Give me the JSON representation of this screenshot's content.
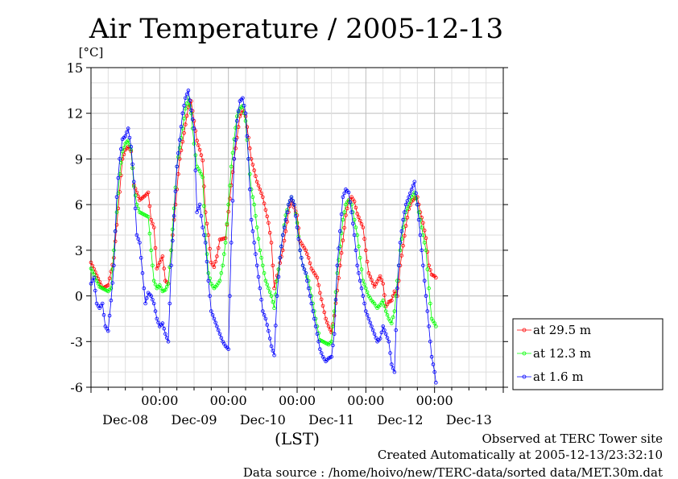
{
  "chart_data": {
    "type": "line",
    "title": "Air Temperature / 2005-12-13",
    "ylabel": "[°C]",
    "xlabel": "(LST)",
    "ylim": [
      -6,
      15
    ],
    "yticks": [
      "15",
      "12",
      "9",
      "6",
      "3",
      "0",
      "-3",
      "-6"
    ],
    "xlim_hours": [
      0,
      144
    ],
    "x_time_labels": [
      "00:00",
      "00:00",
      "00:00",
      "00:00",
      "00:00"
    ],
    "x_date_labels": [
      "Dec-08",
      "Dec-09",
      "Dec-10",
      "Dec-11",
      "Dec-12",
      "Dec-13"
    ],
    "grid": true,
    "legend_position": "right",
    "series": [
      {
        "name": "at 29.5 m",
        "color": "#ff0000",
        "points": [
          [
            0,
            2.2
          ],
          [
            4,
            0.5
          ],
          [
            6,
            0.7
          ],
          [
            8,
            2.5
          ],
          [
            11,
            9.0
          ],
          [
            12,
            9.6
          ],
          [
            13,
            9.8
          ],
          [
            14,
            9.5
          ],
          [
            15,
            7.3
          ],
          [
            17,
            6.3
          ],
          [
            19,
            6.6
          ],
          [
            20,
            6.8
          ],
          [
            21,
            5.0
          ],
          [
            22,
            4.5
          ],
          [
            23,
            1.8
          ],
          [
            25,
            2.6
          ],
          [
            26,
            1.0
          ],
          [
            27,
            0.8
          ],
          [
            28,
            3.0
          ],
          [
            31,
            9.0
          ],
          [
            34,
            12.4
          ],
          [
            35,
            12.8
          ],
          [
            36,
            11.5
          ],
          [
            37,
            10.2
          ],
          [
            38,
            9.6
          ],
          [
            39,
            8.9
          ],
          [
            40,
            5.5
          ],
          [
            41,
            4.0
          ],
          [
            42,
            2.2
          ],
          [
            43,
            1.9
          ],
          [
            44,
            2.6
          ],
          [
            45,
            3.7
          ],
          [
            47,
            3.8
          ],
          [
            50,
            9.0
          ],
          [
            52,
            11.8
          ],
          [
            53,
            12.2
          ],
          [
            54,
            11.8
          ],
          [
            56,
            9.0
          ],
          [
            58,
            7.5
          ],
          [
            60,
            6.5
          ],
          [
            62,
            4.8
          ],
          [
            63,
            3.5
          ],
          [
            64,
            0.5
          ],
          [
            67,
            3.0
          ],
          [
            69,
            5.5
          ],
          [
            70,
            6.3
          ],
          [
            72,
            5.3
          ],
          [
            73,
            3.6
          ],
          [
            75,
            3.0
          ],
          [
            76,
            2.5
          ],
          [
            77,
            1.8
          ],
          [
            79,
            1.2
          ],
          [
            80,
            0.2
          ],
          [
            82,
            -1.5
          ],
          [
            83,
            -2.0
          ],
          [
            84,
            -2.4
          ],
          [
            85,
            -1.3
          ],
          [
            87,
            2.0
          ],
          [
            89,
            5.3
          ],
          [
            90,
            6.2
          ],
          [
            91,
            6.5
          ],
          [
            92,
            6.2
          ],
          [
            93,
            5.4
          ],
          [
            95,
            4.5
          ],
          [
            97,
            1.5
          ],
          [
            99,
            0.6
          ],
          [
            101,
            1.3
          ],
          [
            102,
            0.8
          ],
          [
            103,
            -0.7
          ],
          [
            104,
            -0.4
          ],
          [
            105,
            -0.3
          ],
          [
            106,
            0.3
          ],
          [
            107,
            0.0
          ],
          [
            108,
            2.0
          ],
          [
            110,
            4.6
          ],
          [
            111,
            5.7
          ],
          [
            112,
            6.2
          ],
          [
            113,
            6.4
          ],
          [
            114,
            6.5
          ],
          [
            115,
            5.5
          ],
          [
            116,
            4.8
          ],
          [
            117,
            3.8
          ],
          [
            118,
            2.0
          ],
          [
            119,
            1.4
          ],
          [
            120,
            1.3
          ],
          [
            120.5,
            1.2
          ]
        ]
      },
      {
        "name": "at 12.3 m",
        "color": "#00ff00",
        "points": [
          [
            0,
            1.8
          ],
          [
            2,
            1.0
          ],
          [
            3,
            0.6
          ],
          [
            4,
            0.5
          ],
          [
            6,
            0.3
          ],
          [
            7,
            0.5
          ],
          [
            8,
            3.0
          ],
          [
            10,
            8.0
          ],
          [
            11,
            9.5
          ],
          [
            12,
            10.0
          ],
          [
            13,
            10.2
          ],
          [
            14,
            9.6
          ],
          [
            15,
            7.2
          ],
          [
            16,
            6.0
          ],
          [
            17,
            5.5
          ],
          [
            19,
            5.3
          ],
          [
            20,
            5.2
          ],
          [
            21,
            3.0
          ],
          [
            22,
            1.0
          ],
          [
            23,
            0.5
          ],
          [
            24,
            0.7
          ],
          [
            25,
            0.3
          ],
          [
            26,
            0.4
          ],
          [
            27,
            0.8
          ],
          [
            28,
            3.0
          ],
          [
            30,
            8.5
          ],
          [
            32,
            11.0
          ],
          [
            33,
            12.3
          ],
          [
            34,
            13.0
          ],
          [
            35,
            12.0
          ],
          [
            36,
            10.0
          ],
          [
            37,
            8.5
          ],
          [
            38,
            8.2
          ],
          [
            39,
            7.8
          ],
          [
            40,
            4.0
          ],
          [
            41,
            1.5
          ],
          [
            42,
            0.8
          ],
          [
            43,
            0.5
          ],
          [
            44,
            0.7
          ],
          [
            45,
            1.0
          ],
          [
            46,
            2.0
          ],
          [
            47,
            3.5
          ],
          [
            49,
            8.5
          ],
          [
            50,
            10.3
          ],
          [
            51,
            11.8
          ],
          [
            52,
            12.3
          ],
          [
            53,
            12.5
          ],
          [
            54,
            11.5
          ],
          [
            55,
            9.0
          ],
          [
            56,
            7.0
          ],
          [
            57,
            6.0
          ],
          [
            58,
            4.5
          ],
          [
            59,
            3.0
          ],
          [
            60,
            2.0
          ],
          [
            61,
            1.0
          ],
          [
            62,
            0.5
          ],
          [
            63,
            0.0
          ],
          [
            64,
            -0.8
          ],
          [
            65,
            1.0
          ],
          [
            66,
            2.5
          ],
          [
            67,
            4.0
          ],
          [
            68,
            5.3
          ],
          [
            69,
            6.0
          ],
          [
            70,
            6.5
          ],
          [
            71,
            6.0
          ],
          [
            72,
            4.8
          ],
          [
            73,
            3.0
          ],
          [
            74,
            2.0
          ],
          [
            75,
            1.5
          ],
          [
            76,
            1.0
          ],
          [
            77,
            0.0
          ],
          [
            78,
            -1.0
          ],
          [
            79,
            -2.0
          ],
          [
            80,
            -2.9
          ],
          [
            81,
            -3.0
          ],
          [
            82,
            -3.1
          ],
          [
            83,
            -3.2
          ],
          [
            84,
            -3.0
          ],
          [
            85,
            -1.0
          ],
          [
            86,
            1.5
          ],
          [
            88,
            5.0
          ],
          [
            89,
            6.0
          ],
          [
            90,
            6.3
          ],
          [
            91,
            6.0
          ],
          [
            92,
            5.0
          ],
          [
            93,
            4.0
          ],
          [
            94,
            2.5
          ],
          [
            95,
            1.0
          ],
          [
            96,
            0.5
          ],
          [
            97,
            0.0
          ],
          [
            98,
            -0.3
          ],
          [
            99,
            -0.5
          ],
          [
            100,
            -0.8
          ],
          [
            101,
            -0.6
          ],
          [
            102,
            -0.3
          ],
          [
            103,
            -1.0
          ],
          [
            104,
            -1.5
          ],
          [
            105,
            -1.8
          ],
          [
            106,
            -1.0
          ],
          [
            107,
            1.0
          ],
          [
            108,
            3.0
          ],
          [
            109,
            4.5
          ],
          [
            110,
            5.5
          ],
          [
            111,
            6.0
          ],
          [
            112,
            6.5
          ],
          [
            113,
            6.8
          ],
          [
            114,
            6.0
          ],
          [
            115,
            5.0
          ],
          [
            116,
            4.0
          ],
          [
            117,
            3.0
          ],
          [
            118,
            0.5
          ],
          [
            119,
            -1.5
          ],
          [
            120,
            -1.8
          ],
          [
            120.5,
            -2.0
          ]
        ]
      },
      {
        "name": "at 1.6 m",
        "color": "#0000ff",
        "points": [
          [
            0,
            0.8
          ],
          [
            1,
            1.2
          ],
          [
            2,
            -0.5
          ],
          [
            3,
            -0.8
          ],
          [
            4,
            -0.5
          ],
          [
            5,
            -2.0
          ],
          [
            6,
            -2.3
          ],
          [
            7,
            -0.3
          ],
          [
            8,
            2.0
          ],
          [
            9,
            6.5
          ],
          [
            10,
            9.0
          ],
          [
            11,
            10.3
          ],
          [
            12,
            10.5
          ],
          [
            13,
            11.0
          ],
          [
            14,
            9.8
          ],
          [
            15,
            7.5
          ],
          [
            16,
            4.0
          ],
          [
            17,
            3.5
          ],
          [
            18,
            1.5
          ],
          [
            19,
            -0.5
          ],
          [
            20,
            0.2
          ],
          [
            21,
            0.0
          ],
          [
            22,
            -0.5
          ],
          [
            23,
            -1.5
          ],
          [
            24,
            -2.0
          ],
          [
            25,
            -1.8
          ],
          [
            26,
            -2.5
          ],
          [
            27,
            -3.0
          ],
          [
            28,
            2.0
          ],
          [
            30,
            8.5
          ],
          [
            32,
            12.0
          ],
          [
            33,
            13.0
          ],
          [
            34,
            13.5
          ],
          [
            35,
            12.2
          ],
          [
            36,
            11.0
          ],
          [
            37,
            5.5
          ],
          [
            38,
            6.0
          ],
          [
            39,
            4.5
          ],
          [
            40,
            3.5
          ],
          [
            41,
            1.0
          ],
          [
            42,
            -1.0
          ],
          [
            43,
            -1.5
          ],
          [
            44,
            -2.0
          ],
          [
            45,
            -2.5
          ],
          [
            46,
            -3.0
          ],
          [
            47,
            -3.3
          ],
          [
            48,
            -3.5
          ],
          [
            49,
            3.5
          ],
          [
            50,
            9.0
          ],
          [
            51,
            11.5
          ],
          [
            52,
            12.8
          ],
          [
            53,
            13.0
          ],
          [
            54,
            12.0
          ],
          [
            55,
            9.0
          ],
          [
            56,
            5.0
          ],
          [
            57,
            3.5
          ],
          [
            58,
            2.0
          ],
          [
            59,
            0.5
          ],
          [
            60,
            -1.0
          ],
          [
            61,
            -1.5
          ],
          [
            62,
            -2.3
          ],
          [
            63,
            -3.3
          ],
          [
            64,
            -3.9
          ],
          [
            65,
            0.0
          ],
          [
            66,
            2.5
          ],
          [
            67,
            4.0
          ],
          [
            68,
            5.0
          ],
          [
            69,
            6.0
          ],
          [
            70,
            6.5
          ],
          [
            71,
            6.0
          ],
          [
            72,
            4.5
          ],
          [
            73,
            3.0
          ],
          [
            74,
            2.0
          ],
          [
            75,
            1.5
          ],
          [
            76,
            0.5
          ],
          [
            77,
            -0.5
          ],
          [
            78,
            -1.5
          ],
          [
            79,
            -2.5
          ],
          [
            80,
            -3.5
          ],
          [
            81,
            -4.0
          ],
          [
            82,
            -4.3
          ],
          [
            83,
            -4.1
          ],
          [
            84,
            -4.0
          ],
          [
            85,
            -2.5
          ],
          [
            86,
            2.0
          ],
          [
            88,
            6.5
          ],
          [
            89,
            7.0
          ],
          [
            90,
            6.8
          ],
          [
            91,
            5.5
          ],
          [
            92,
            4.0
          ],
          [
            93,
            2.0
          ],
          [
            94,
            1.0
          ],
          [
            95,
            0.0
          ],
          [
            96,
            -1.0
          ],
          [
            97,
            -1.5
          ],
          [
            98,
            -2.0
          ],
          [
            99,
            -2.5
          ],
          [
            100,
            -3.0
          ],
          [
            101,
            -2.8
          ],
          [
            102,
            -2.0
          ],
          [
            103,
            -2.5
          ],
          [
            104,
            -3.0
          ],
          [
            105,
            -4.5
          ],
          [
            106,
            -5.0
          ],
          [
            107,
            0.5
          ],
          [
            108,
            3.5
          ],
          [
            109,
            5.0
          ],
          [
            110,
            6.0
          ],
          [
            111,
            6.5
          ],
          [
            112,
            7.0
          ],
          [
            113,
            7.5
          ],
          [
            114,
            6.0
          ],
          [
            115,
            4.0
          ],
          [
            116,
            2.0
          ],
          [
            117,
            0.0
          ],
          [
            118,
            -2.0
          ],
          [
            119,
            -4.0
          ],
          [
            120,
            -5.0
          ],
          [
            120.5,
            -5.7
          ]
        ]
      }
    ]
  },
  "footer": {
    "line1": "Observed at TERC Tower site",
    "line2": "Created Automatically at 2005-12-13/23:32:10",
    "line3": "Data source : /home/hoivo/new/TERC-data/sorted  data/MET.30m.dat"
  }
}
